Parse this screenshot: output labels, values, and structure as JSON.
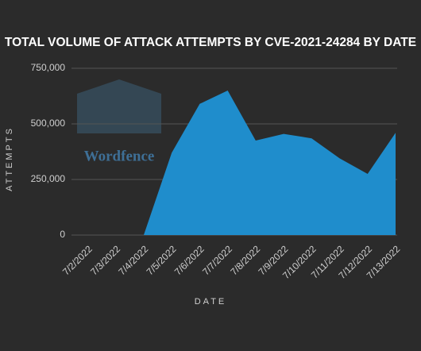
{
  "chart_data": {
    "type": "area",
    "title": "TOTAL VOLUME OF ATTACK ATTEMPTS BY CVE-2021-24284 BY DATE",
    "x_label": "DATE",
    "y_label": "ATTEMPTS",
    "watermark": "Wordfence",
    "categories": [
      "7/2/2022",
      "7/3/2022",
      "7/4/2022",
      "7/5/2022",
      "7/6/2022",
      "7/7/2022",
      "7/8/2022",
      "7/9/2022",
      "7/10/2022",
      "7/11/2022",
      "7/12/2022",
      "7/13/2022"
    ],
    "values": [
      0,
      0,
      0,
      370000,
      590000,
      650000,
      425000,
      455000,
      435000,
      345000,
      275000,
      460000
    ],
    "color": "#1f8dcc",
    "ylim": [
      0,
      750000
    ],
    "yticks": [
      0,
      {
        "value": 250000,
        "label": "250,000"
      },
      {
        "value": 500000,
        "label": "500,000"
      },
      {
        "value": 750000,
        "label": "750,000"
      }
    ],
    "grid": true
  }
}
